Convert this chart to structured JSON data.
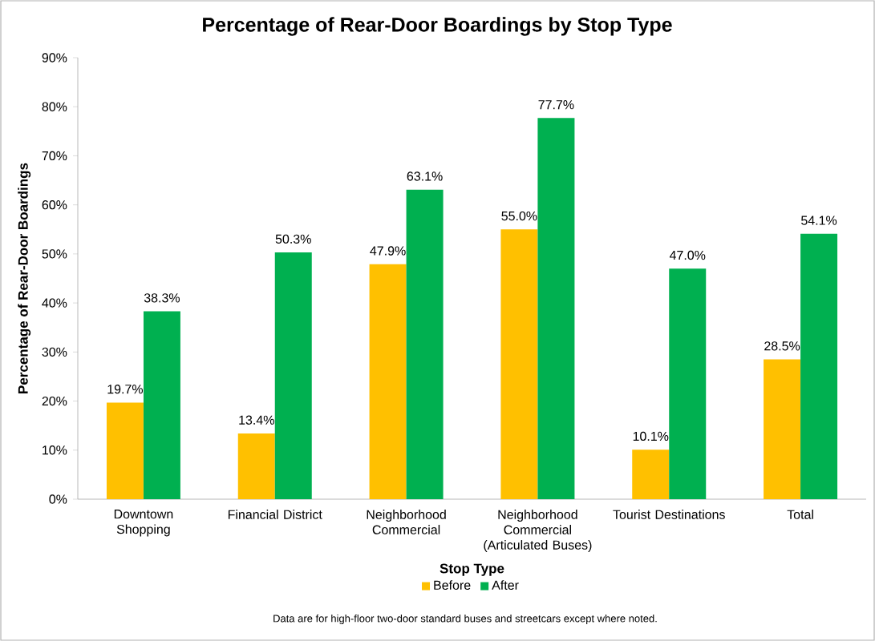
{
  "chart_data": {
    "type": "bar",
    "title": "Percentage of Rear-Door Boardings by Stop Type",
    "xlabel": "Stop Type",
    "ylabel": "Percentage of Rear-Door Boardings",
    "categories": [
      "Downtown Shopping",
      "Financial District",
      "Neighborhood Commercial",
      "Neighborhood Commercial (Articulated Buses)",
      "Tourist Destinations",
      "Total"
    ],
    "series": [
      {
        "name": "Before",
        "color": "#ffc000",
        "values": [
          19.7,
          13.4,
          47.9,
          55.0,
          10.1,
          28.5
        ],
        "value_labels": [
          "19.7%",
          "13.4%",
          "47.9%",
          "55.0%",
          "10.1%",
          "28.5%"
        ]
      },
      {
        "name": "After",
        "color": "#00b050",
        "values": [
          38.3,
          50.3,
          63.1,
          77.7,
          47.0,
          54.1
        ],
        "value_labels": [
          "38.3%",
          "50.3%",
          "63.1%",
          "77.7%",
          "47.0%",
          "54.1%"
        ]
      }
    ],
    "ylim": [
      0,
      90
    ],
    "yticks": [
      {
        "value": 0,
        "label": "0%"
      },
      {
        "value": 10,
        "label": "10%"
      },
      {
        "value": 20,
        "label": "20%"
      },
      {
        "value": 30,
        "label": "30%"
      },
      {
        "value": 40,
        "label": "40%"
      },
      {
        "value": 50,
        "label": "50%"
      },
      {
        "value": 60,
        "label": "60%"
      },
      {
        "value": 70,
        "label": "70%"
      },
      {
        "value": 80,
        "label": "80%"
      },
      {
        "value": 90,
        "label": "90%"
      }
    ],
    "grid": false,
    "legend": "bottom",
    "annotations": [
      "Data are for high-floor two-door standard buses and streetcars except where noted."
    ]
  }
}
